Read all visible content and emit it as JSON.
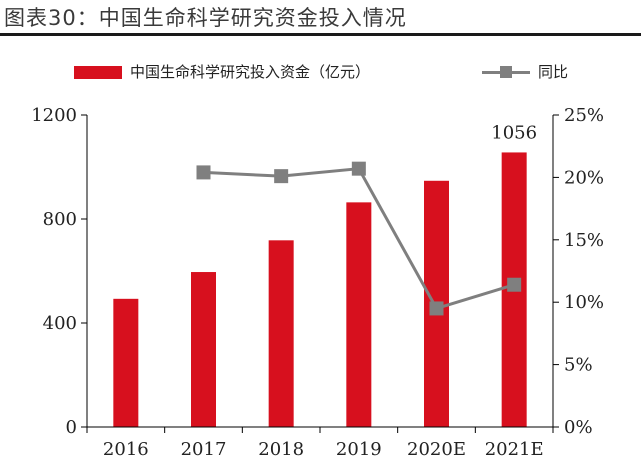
{
  "title": "图表30：中国生命科学研究资金投入情况",
  "colors": {
    "bar": "#d7101e",
    "line": "#7f7f7f",
    "axis": "#000000"
  },
  "chart_data": {
    "type": "bar",
    "categories": [
      "2016",
      "2017",
      "2018",
      "2019",
      "2020E",
      "2021E"
    ],
    "series": [
      {
        "name": "中国生命科学研究投入资金（亿元）",
        "kind": "bar",
        "axis": "left",
        "values": [
          493,
          596,
          718,
          864,
          947,
          1056
        ]
      },
      {
        "name": "同比",
        "kind": "line",
        "axis": "right",
        "values": [
          null,
          20.4,
          20.1,
          20.7,
          9.5,
          11.4
        ]
      }
    ],
    "left_axis": {
      "ylim": [
        0,
        1200
      ],
      "ticks": [
        0,
        400,
        800,
        1200
      ],
      "labels": [
        "0",
        "400",
        "800",
        "1200"
      ]
    },
    "right_axis": {
      "ylim": [
        0,
        25
      ],
      "ticks": [
        0,
        5,
        10,
        15,
        20,
        25
      ],
      "labels": [
        "0%",
        "5%",
        "10%",
        "15%",
        "20%",
        "25%"
      ]
    },
    "data_labels": [
      {
        "category": "2021E",
        "text": "1056"
      }
    ],
    "legend": {
      "position": "top",
      "bar_label": "中国生命科学研究投入资金（亿元）",
      "line_label": "同比"
    },
    "grid": false
  }
}
